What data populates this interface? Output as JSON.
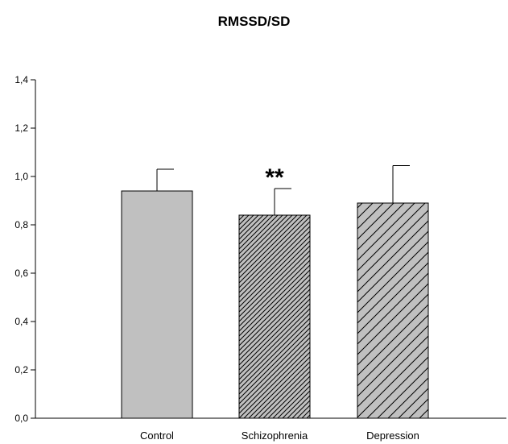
{
  "chart_data": {
    "type": "bar",
    "title": "RMSSD/SD",
    "xlabel": "",
    "ylabel": "",
    "categories": [
      "Control",
      "Schizophrenia",
      "Depression"
    ],
    "values": [
      0.94,
      0.84,
      0.89
    ],
    "error_plus": [
      0.09,
      0.11,
      0.155
    ],
    "patterns": [
      "solid",
      "dense-hatch",
      "hatch"
    ],
    "annotations": [
      {
        "category": "Schizophrenia",
        "text": "**"
      }
    ],
    "ylim": [
      0,
      1.4
    ],
    "yticks": [
      "0,0",
      "0,2",
      "0,4",
      "0,6",
      "0,8",
      "1,0",
      "1,2",
      "1,4"
    ],
    "grid": false,
    "colors": {
      "bar_fill": "#c0c0c0",
      "stroke": "#000000"
    }
  }
}
